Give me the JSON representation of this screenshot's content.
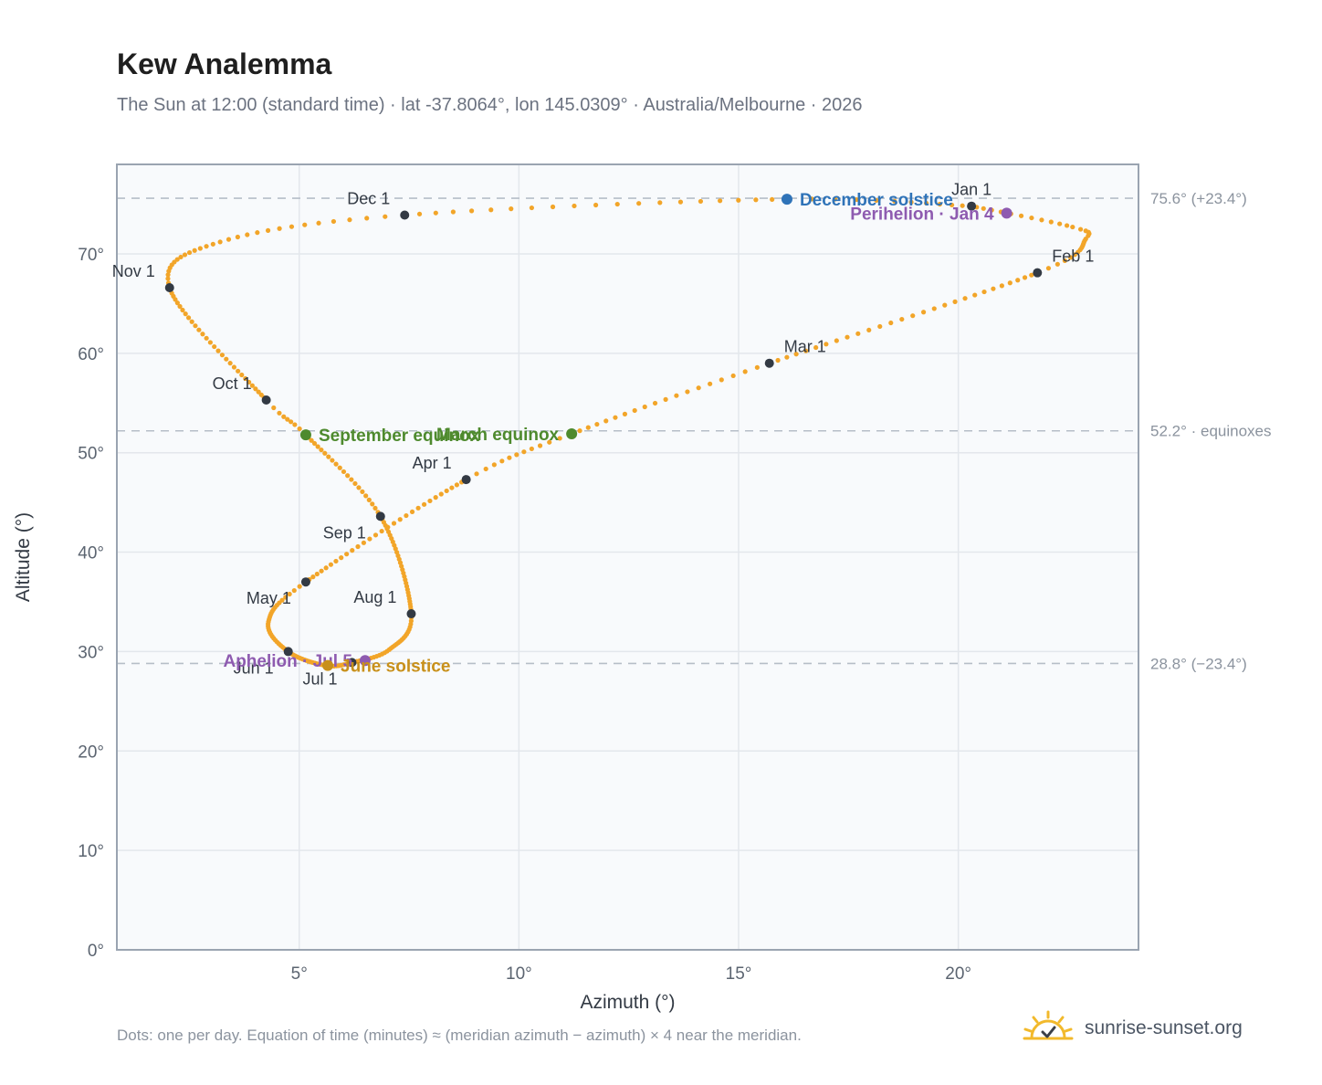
{
  "title": "Kew Analemma",
  "subtitle": "The Sun at 12:00 (standard time) · lat -37.8064°, lon 145.0309° · Australia/Melbourne · 2026",
  "footnote": "Dots: one per day. Equation of time (minutes) ≈ (meridian azimuth − azimuth) × 4 near the meridian.",
  "brand": {
    "name": "sunrise-sunset.org",
    "icon": "sun-check-icon"
  },
  "chart_data": {
    "type": "scatter",
    "xlabel": "Azimuth (°)",
    "ylabel": "Altitude (°)",
    "xlim": [
      0.85,
      24.1
    ],
    "ylim": [
      0,
      79
    ],
    "grid": true,
    "x_ticks": [
      5,
      10,
      15,
      20
    ],
    "y_ticks": [
      0,
      10,
      20,
      30,
      40,
      50,
      60,
      70
    ],
    "x_tick_labels": [
      "5°",
      "10°",
      "15°",
      "20°"
    ],
    "y_tick_labels": [
      "0°",
      "10°",
      "20°",
      "30°",
      "40°",
      "50°",
      "60°",
      "70°"
    ],
    "reference_lines": [
      {
        "y": 75.6,
        "label": "75.6° (+23.4°)"
      },
      {
        "y": 52.2,
        "label": "52.2° · equinoxes"
      },
      {
        "y": 28.8,
        "label": "28.8° (−23.4°)"
      }
    ],
    "path_anchors": [
      {
        "day": 0,
        "az": 20.3,
        "alt": 74.8
      },
      {
        "day": 12,
        "az": 22.6,
        "alt": 72.7
      },
      {
        "day": 18,
        "az": 22.9,
        "alt": 71.5
      },
      {
        "day": 31,
        "az": 21.8,
        "alt": 68.1
      },
      {
        "day": 59,
        "az": 15.7,
        "alt": 59.0
      },
      {
        "day": 78,
        "az": 11.2,
        "alt": 51.9
      },
      {
        "day": 90,
        "az": 8.8,
        "alt": 47.3
      },
      {
        "day": 120,
        "az": 5.15,
        "alt": 37.0
      },
      {
        "day": 135,
        "az": 4.3,
        "alt": 33.0
      },
      {
        "day": 151,
        "az": 4.75,
        "alt": 30.0
      },
      {
        "day": 171,
        "az": 5.6,
        "alt": 28.6
      },
      {
        "day": 181,
        "az": 6.2,
        "alt": 28.9
      },
      {
        "day": 195,
        "az": 7.05,
        "alt": 30.2
      },
      {
        "day": 212,
        "az": 7.55,
        "alt": 33.8
      },
      {
        "day": 243,
        "az": 6.85,
        "alt": 43.6
      },
      {
        "day": 265,
        "az": 5.15,
        "alt": 51.8
      },
      {
        "day": 273,
        "az": 4.25,
        "alt": 55.3
      },
      {
        "day": 304,
        "az": 2.05,
        "alt": 66.6
      },
      {
        "day": 320,
        "az": 3.2,
        "alt": 71.2
      },
      {
        "day": 334,
        "az": 7.4,
        "alt": 73.9
      },
      {
        "day": 354,
        "az": 16.1,
        "alt": 75.5
      },
      {
        "day": 365,
        "az": 20.3,
        "alt": 74.8
      }
    ],
    "month_markers": [
      {
        "label": "Jan 1",
        "az": 20.3,
        "alt": 74.8,
        "anchor": "above"
      },
      {
        "label": "Feb 1",
        "az": 21.8,
        "alt": 68.1,
        "anchor": "above-right"
      },
      {
        "label": "Mar 1",
        "az": 15.7,
        "alt": 59.0,
        "anchor": "above-right"
      },
      {
        "label": "Apr 1",
        "az": 8.8,
        "alt": 47.3,
        "anchor": "above-left"
      },
      {
        "label": "May 1",
        "az": 5.15,
        "alt": 37.0,
        "anchor": "below-left"
      },
      {
        "label": "Jun 1",
        "az": 4.75,
        "alt": 30.0,
        "anchor": "below-left"
      },
      {
        "label": "Jul 1",
        "az": 6.2,
        "alt": 28.9,
        "anchor": "below-left"
      },
      {
        "label": "Aug 1",
        "az": 7.55,
        "alt": 33.8,
        "anchor": "above-left"
      },
      {
        "label": "Sep 1",
        "az": 6.85,
        "alt": 43.6,
        "anchor": "below-left"
      },
      {
        "label": "Oct 1",
        "az": 4.25,
        "alt": 55.3,
        "anchor": "above-left"
      },
      {
        "label": "Nov 1",
        "az": 2.05,
        "alt": 66.6,
        "anchor": "above-left"
      },
      {
        "label": "Dec 1",
        "az": 7.4,
        "alt": 73.9,
        "anchor": "above-left"
      }
    ],
    "events": [
      {
        "label": "December solstice",
        "az": 16.1,
        "alt": 75.5,
        "color": "#2f73b8",
        "side": "right"
      },
      {
        "label": "Perihelion · Jan 4",
        "az": 21.1,
        "alt": 74.1,
        "color": "#8e5bb0",
        "side": "left"
      },
      {
        "label": "March equinox",
        "az": 11.2,
        "alt": 51.9,
        "color": "#4e8a2e",
        "side": "left"
      },
      {
        "label": "September equinox",
        "az": 5.15,
        "alt": 51.8,
        "color": "#4e8a2e",
        "side": "right"
      },
      {
        "label": "Aphelion · Jul 5",
        "az": 6.5,
        "alt": 29.1,
        "color": "#8e5bb0",
        "side": "left"
      },
      {
        "label": "June solstice",
        "az": 5.65,
        "alt": 28.6,
        "color": "#c8901a",
        "side": "right"
      }
    ],
    "colors": {
      "path": "#f2a529",
      "month_marker": "#333a44",
      "grid": "#e3e7ec",
      "plot_bg": "#f8fafc",
      "reference": "#b6bec8"
    }
  }
}
